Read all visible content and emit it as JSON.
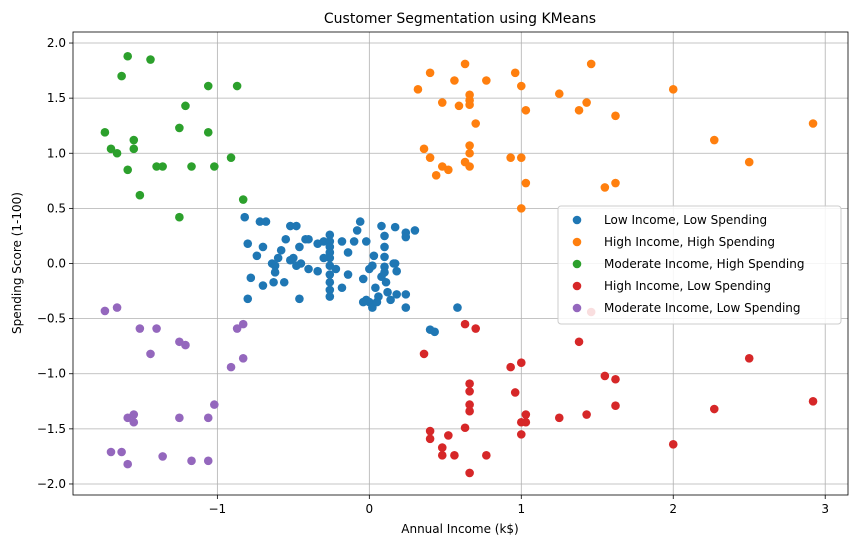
{
  "chart_data": {
    "type": "scatter",
    "title": "Customer Segmentation using KMeans",
    "xlabel": "Annual Income (k$)",
    "ylabel": "Spending Score (1-100)",
    "xlim": [
      -1.95,
      3.15
    ],
    "ylim": [
      -2.1,
      2.1
    ],
    "x_ticks": [
      -1,
      0,
      1,
      2,
      3
    ],
    "x_tick_labels": [
      "−1",
      "0",
      "1",
      "2",
      "3"
    ],
    "y_ticks": [
      -2.0,
      -1.5,
      -1.0,
      -0.5,
      0.0,
      0.5,
      1.0,
      1.5,
      2.0
    ],
    "y_tick_labels": [
      "−2.0",
      "−1.5",
      "−1.0",
      "−0.5",
      "0.0",
      "0.5",
      "1.0",
      "1.5",
      "2.0"
    ],
    "grid": true,
    "legend_position": "center-right",
    "series": [
      {
        "name": "Low Income, Low Spending",
        "color": "#1f77b4",
        "points": [
          [
            -0.82,
            0.42
          ],
          [
            -0.8,
            0.18
          ],
          [
            -0.74,
            0.07
          ],
          [
            -0.72,
            0.38
          ],
          [
            -0.68,
            0.38
          ],
          [
            -0.7,
            0.15
          ],
          [
            -0.64,
            0.0
          ],
          [
            -0.63,
            -0.17
          ],
          [
            -0.6,
            0.05
          ],
          [
            -0.58,
            0.12
          ],
          [
            -0.55,
            0.22
          ],
          [
            -0.52,
            0.34
          ],
          [
            -0.52,
            0.03
          ],
          [
            -0.48,
            0.34
          ],
          [
            -0.46,
            0.15
          ],
          [
            -0.45,
            0.0
          ],
          [
            -0.42,
            0.22
          ],
          [
            -0.4,
            -0.05
          ],
          [
            -0.34,
            0.18
          ],
          [
            -0.3,
            0.2
          ],
          [
            -0.26,
            0.26
          ],
          [
            -0.26,
            0.2
          ],
          [
            -0.26,
            0.15
          ],
          [
            -0.26,
            0.1
          ],
          [
            -0.26,
            0.05
          ],
          [
            -0.26,
            -0.02
          ],
          [
            -0.26,
            -0.1
          ],
          [
            -0.26,
            -0.17
          ],
          [
            -0.26,
            -0.24
          ],
          [
            -0.26,
            -0.3
          ],
          [
            -0.22,
            -0.05
          ],
          [
            -0.18,
            -0.22
          ],
          [
            -0.14,
            -0.1
          ],
          [
            -0.1,
            0.2
          ],
          [
            -0.08,
            0.3
          ],
          [
            -0.06,
            0.38
          ],
          [
            -0.04,
            -0.14
          ],
          [
            -0.02,
            0.2
          ],
          [
            0.0,
            -0.35
          ],
          [
            0.0,
            -0.05
          ],
          [
            0.02,
            -0.02
          ],
          [
            0.03,
            0.07
          ],
          [
            0.04,
            -0.22
          ],
          [
            0.06,
            -0.3
          ],
          [
            0.08,
            0.34
          ],
          [
            0.08,
            -0.12
          ],
          [
            0.1,
            0.25
          ],
          [
            0.1,
            0.15
          ],
          [
            0.1,
            0.06
          ],
          [
            0.1,
            -0.03
          ],
          [
            0.1,
            -0.08
          ],
          [
            0.11,
            -0.17
          ],
          [
            0.12,
            -0.26
          ],
          [
            0.14,
            -0.33
          ],
          [
            0.17,
            0.33
          ],
          [
            0.17,
            0.0
          ],
          [
            0.18,
            -0.07
          ],
          [
            0.18,
            -0.28
          ],
          [
            0.24,
            0.28
          ],
          [
            0.24,
            0.24
          ],
          [
            0.24,
            -0.28
          ],
          [
            0.24,
            -0.4
          ],
          [
            0.3,
            0.3
          ],
          [
            -0.78,
            -0.13
          ],
          [
            -0.7,
            -0.2
          ],
          [
            -0.62,
            -0.08
          ],
          [
            -0.56,
            -0.17
          ],
          [
            -0.48,
            -0.02
          ],
          [
            -0.46,
            -0.32
          ],
          [
            -0.4,
            0.22
          ],
          [
            -0.14,
            0.1
          ],
          [
            -0.04,
            -0.35
          ],
          [
            0.02,
            -0.4
          ],
          [
            -0.02,
            -0.33
          ],
          [
            0.05,
            -0.35
          ],
          [
            -0.8,
            -0.32
          ],
          [
            -0.34,
            -0.07
          ],
          [
            0.4,
            -0.6
          ],
          [
            0.43,
            -0.62
          ],
          [
            0.58,
            -0.4
          ],
          [
            -0.62,
            -0.02
          ],
          [
            -0.5,
            0.05
          ],
          [
            -0.18,
            0.2
          ],
          [
            0.16,
            0.0
          ],
          [
            -0.3,
            0.05
          ]
        ]
      },
      {
        "name": "High Income, High Spending",
        "color": "#ff7f0e",
        "points": [
          [
            0.32,
            1.58
          ],
          [
            0.36,
            1.04
          ],
          [
            0.4,
            1.73
          ],
          [
            0.4,
            0.96
          ],
          [
            0.44,
            0.8
          ],
          [
            0.48,
            1.46
          ],
          [
            0.48,
            0.88
          ],
          [
            0.52,
            0.85
          ],
          [
            0.56,
            1.66
          ],
          [
            0.59,
            1.43
          ],
          [
            0.63,
            1.81
          ],
          [
            0.63,
            0.92
          ],
          [
            0.66,
            1.53
          ],
          [
            0.66,
            1.48
          ],
          [
            0.66,
            1.44
          ],
          [
            0.66,
            1.07
          ],
          [
            0.66,
            1.0
          ],
          [
            0.66,
            0.88
          ],
          [
            0.7,
            1.27
          ],
          [
            0.77,
            1.66
          ],
          [
            0.93,
            0.96
          ],
          [
            0.96,
            1.73
          ],
          [
            1.0,
            1.61
          ],
          [
            1.0,
            0.96
          ],
          [
            1.0,
            0.5
          ],
          [
            1.03,
            1.39
          ],
          [
            1.03,
            0.73
          ],
          [
            1.25,
            1.54
          ],
          [
            1.38,
            1.39
          ],
          [
            1.43,
            1.46
          ],
          [
            1.46,
            1.81
          ],
          [
            1.55,
            0.69
          ],
          [
            1.62,
            1.34
          ],
          [
            1.62,
            0.73
          ],
          [
            2.0,
            1.58
          ],
          [
            2.27,
            1.12
          ],
          [
            2.5,
            0.92
          ],
          [
            2.92,
            1.27
          ]
        ]
      },
      {
        "name": "Moderate Income, High Spending",
        "color": "#2ca02c",
        "points": [
          [
            -1.74,
            1.19
          ],
          [
            -1.7,
            1.04
          ],
          [
            -1.66,
            1.0
          ],
          [
            -1.63,
            1.7
          ],
          [
            -1.59,
            1.88
          ],
          [
            -1.59,
            0.85
          ],
          [
            -1.55,
            1.12
          ],
          [
            -1.55,
            1.04
          ],
          [
            -1.51,
            0.62
          ],
          [
            -1.44,
            1.85
          ],
          [
            -1.4,
            0.88
          ],
          [
            -1.36,
            0.88
          ],
          [
            -1.25,
            1.23
          ],
          [
            -1.25,
            0.42
          ],
          [
            -1.21,
            1.43
          ],
          [
            -1.17,
            0.88
          ],
          [
            -1.06,
            1.61
          ],
          [
            -1.06,
            1.19
          ],
          [
            -1.02,
            0.88
          ],
          [
            -0.91,
            0.96
          ],
          [
            -0.87,
            1.61
          ],
          [
            -0.83,
            0.58
          ]
        ]
      },
      {
        "name": "High Income, Low Spending",
        "color": "#d62728",
        "points": [
          [
            0.36,
            -0.82
          ],
          [
            0.4,
            -1.52
          ],
          [
            0.4,
            -1.59
          ],
          [
            0.48,
            -1.67
          ],
          [
            0.48,
            -1.74
          ],
          [
            0.52,
            -1.56
          ],
          [
            0.56,
            -1.74
          ],
          [
            0.63,
            -0.55
          ],
          [
            0.63,
            -1.49
          ],
          [
            0.66,
            -1.09
          ],
          [
            0.66,
            -1.16
          ],
          [
            0.66,
            -1.28
          ],
          [
            0.66,
            -1.34
          ],
          [
            0.66,
            -1.9
          ],
          [
            0.7,
            -0.59
          ],
          [
            0.77,
            -1.74
          ],
          [
            0.93,
            -0.94
          ],
          [
            0.96,
            -1.17
          ],
          [
            1.0,
            -0.9
          ],
          [
            1.0,
            -1.44
          ],
          [
            1.0,
            -1.55
          ],
          [
            1.03,
            -1.37
          ],
          [
            1.03,
            -1.44
          ],
          [
            1.25,
            -1.4
          ],
          [
            1.38,
            -0.71
          ],
          [
            1.43,
            -1.37
          ],
          [
            1.46,
            -0.44
          ],
          [
            1.55,
            -1.02
          ],
          [
            1.62,
            -1.05
          ],
          [
            1.62,
            -1.29
          ],
          [
            2.0,
            -1.64
          ],
          [
            2.27,
            -1.32
          ],
          [
            2.5,
            -0.86
          ],
          [
            2.92,
            -1.25
          ]
        ]
      },
      {
        "name": "Moderate Income, Low Spending",
        "color": "#9467bd",
        "points": [
          [
            -1.74,
            -0.43
          ],
          [
            -1.7,
            -1.71
          ],
          [
            -1.66,
            -0.4
          ],
          [
            -1.63,
            -1.71
          ],
          [
            -1.59,
            -1.82
          ],
          [
            -1.59,
            -1.4
          ],
          [
            -1.55,
            -1.37
          ],
          [
            -1.55,
            -1.44
          ],
          [
            -1.51,
            -0.59
          ],
          [
            -1.44,
            -0.82
          ],
          [
            -1.4,
            -0.59
          ],
          [
            -1.36,
            -1.75
          ],
          [
            -1.25,
            -0.71
          ],
          [
            -1.25,
            -1.4
          ],
          [
            -1.21,
            -0.74
          ],
          [
            -1.17,
            -1.79
          ],
          [
            -1.06,
            -1.4
          ],
          [
            -1.06,
            -1.79
          ],
          [
            -1.02,
            -1.28
          ],
          [
            -0.91,
            -0.94
          ],
          [
            -0.87,
            -0.59
          ],
          [
            -0.83,
            -0.55
          ],
          [
            -0.83,
            -0.86
          ]
        ]
      }
    ]
  }
}
